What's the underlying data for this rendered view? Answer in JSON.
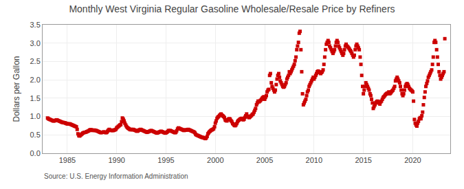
{
  "chart_data": {
    "type": "scatter",
    "title": "Monthly West Virginia Regular Gasoline Wholesale/Resale Price by Refiners",
    "ylabel": "Dollars per Gallon",
    "annotations": [
      "Source: U.S. Energy Information Administration"
    ],
    "color": "#cc0000",
    "marker": "square",
    "grid": true,
    "xlim": [
      1982.5,
      2023.8
    ],
    "xticks": [
      1985,
      1990,
      1995,
      2000,
      2005,
      2010,
      2015,
      2020
    ],
    "ylim": [
      0.0,
      3.5
    ],
    "yticks": [
      {
        "value": 0.0,
        "label": "0.0"
      },
      0.5,
      {
        "value": 1.0,
        "label": "1.0"
      },
      1.5,
      {
        "value": 2.0,
        "label": "2.0"
      },
      2.5,
      {
        "value": 3.0,
        "label": "3.0"
      },
      3.5
    ],
    "x": [
      1983.0,
      1983.08,
      1983.17,
      1983.25,
      1983.33,
      1983.42,
      1983.5,
      1983.58,
      1983.67,
      1983.75,
      1983.83,
      1983.92,
      1984.0,
      1984.08,
      1984.17,
      1984.25,
      1984.33,
      1984.42,
      1984.5,
      1984.58,
      1984.67,
      1984.75,
      1984.83,
      1984.92,
      1985.0,
      1985.08,
      1985.17,
      1985.25,
      1985.33,
      1985.42,
      1985.5,
      1985.58,
      1985.67,
      1985.75,
      1985.83,
      1985.92,
      1986.0,
      1986.08,
      1986.17,
      1986.25,
      1986.33,
      1986.42,
      1986.5,
      1986.58,
      1986.67,
      1986.75,
      1986.83,
      1986.92,
      1987.0,
      1987.08,
      1987.17,
      1987.25,
      1987.33,
      1987.42,
      1987.5,
      1987.58,
      1987.67,
      1987.75,
      1987.83,
      1987.92,
      1988.0,
      1988.08,
      1988.17,
      1988.25,
      1988.33,
      1988.42,
      1988.5,
      1988.58,
      1988.67,
      1988.75,
      1988.83,
      1988.92,
      1989.0,
      1989.08,
      1989.17,
      1989.25,
      1989.33,
      1989.42,
      1989.5,
      1989.58,
      1989.67,
      1989.75,
      1989.83,
      1989.92,
      1990.0,
      1990.08,
      1990.17,
      1990.25,
      1990.33,
      1990.42,
      1990.5,
      1990.58,
      1990.67,
      1990.75,
      1990.83,
      1990.92,
      1991.0,
      1991.08,
      1991.17,
      1991.25,
      1991.33,
      1991.42,
      1991.5,
      1991.58,
      1991.67,
      1991.75,
      1991.83,
      1991.92,
      1992.0,
      1992.08,
      1992.17,
      1992.25,
      1992.33,
      1992.42,
      1992.5,
      1992.58,
      1992.67,
      1992.75,
      1992.83,
      1992.92,
      1993.0,
      1993.08,
      1993.17,
      1993.25,
      1993.33,
      1993.42,
      1993.5,
      1993.58,
      1993.67,
      1993.75,
      1993.83,
      1993.92,
      1994.0,
      1994.08,
      1994.17,
      1994.25,
      1994.33,
      1994.42,
      1994.5,
      1994.58,
      1994.67,
      1994.75,
      1994.83,
      1994.92,
      1995.0,
      1995.08,
      1995.17,
      1995.25,
      1995.33,
      1995.42,
      1995.5,
      1995.58,
      1995.67,
      1995.75,
      1995.83,
      1995.92,
      1996.0,
      1996.08,
      1996.17,
      1996.25,
      1996.33,
      1996.42,
      1996.5,
      1996.58,
      1996.67,
      1996.75,
      1996.83,
      1996.92,
      1997.0,
      1997.08,
      1997.17,
      1997.25,
      1997.33,
      1997.42,
      1997.5,
      1997.58,
      1997.67,
      1997.75,
      1997.83,
      1997.92,
      1998.0,
      1998.08,
      1998.17,
      1998.25,
      1998.33,
      1998.42,
      1998.5,
      1998.58,
      1998.67,
      1998.75,
      1998.83,
      1998.92,
      1999.0,
      1999.08,
      1999.17,
      1999.25,
      1999.33,
      1999.42,
      1999.5,
      1999.58,
      1999.67,
      1999.75,
      1999.83,
      1999.92,
      2000.0,
      2000.08,
      2000.17,
      2000.25,
      2000.33,
      2000.42,
      2000.5,
      2000.58,
      2000.67,
      2000.75,
      2000.83,
      2000.92,
      2001.0,
      2001.08,
      2001.17,
      2001.25,
      2001.33,
      2001.42,
      2001.5,
      2001.58,
      2001.67,
      2001.75,
      2001.83,
      2001.92,
      2002.0,
      2002.08,
      2002.17,
      2002.25,
      2002.33,
      2002.42,
      2002.5,
      2002.58,
      2002.67,
      2002.75,
      2002.83,
      2002.92,
      2003.0,
      2003.08,
      2003.17,
      2003.25,
      2003.33,
      2003.42,
      2003.5,
      2003.58,
      2003.67,
      2003.75,
      2003.83,
      2003.92,
      2004.0,
      2004.08,
      2004.17,
      2004.25,
      2004.33,
      2004.42,
      2004.5,
      2004.58,
      2004.67,
      2004.75,
      2004.83,
      2004.92,
      2005.0,
      2005.08,
      2005.17,
      2005.25,
      2005.33,
      2005.42,
      2005.5,
      2005.58,
      2005.67,
      2005.75,
      2005.83,
      2005.92,
      2006.0,
      2006.08,
      2006.17,
      2006.25,
      2006.33,
      2006.42,
      2006.5,
      2006.58,
      2006.67,
      2006.75,
      2006.83,
      2006.92,
      2007.0,
      2007.08,
      2007.17,
      2007.25,
      2007.33,
      2007.42,
      2007.5,
      2007.58,
      2007.67,
      2007.75,
      2007.83,
      2007.92,
      2008.0,
      2008.08,
      2008.17,
      2008.25,
      2008.33,
      2008.42,
      2008.5,
      2008.58,
      2008.67,
      2008.75,
      2008.83,
      2008.92,
      2009.0,
      2009.08,
      2009.17,
      2009.25,
      2009.33,
      2009.42,
      2009.5,
      2009.58,
      2009.67,
      2009.75,
      2009.83,
      2009.92,
      2010.0,
      2010.08,
      2010.17,
      2010.25,
      2010.33,
      2010.42,
      2010.5,
      2010.58,
      2010.67,
      2010.75,
      2010.83,
      2010.92,
      2011.0,
      2011.08,
      2011.17,
      2011.25,
      2011.33,
      2011.42,
      2011.5,
      2011.58,
      2011.67,
      2011.75,
      2011.83,
      2011.92,
      2012.0,
      2012.08,
      2012.17,
      2012.25,
      2012.33,
      2012.42,
      2012.5,
      2012.58,
      2012.67,
      2012.75,
      2012.83,
      2012.92,
      2013.0,
      2013.08,
      2013.17,
      2013.25,
      2013.33,
      2013.42,
      2013.5,
      2013.58,
      2013.67,
      2013.75,
      2013.83,
      2013.92,
      2014.0,
      2014.08,
      2014.17,
      2014.25,
      2014.33,
      2014.42,
      2014.5,
      2014.58,
      2014.67,
      2014.75,
      2014.83,
      2014.92,
      2015.0,
      2015.08,
      2015.17,
      2015.25,
      2015.33,
      2015.42,
      2015.5,
      2015.58,
      2015.67,
      2015.75,
      2015.83,
      2015.92,
      2016.0,
      2016.08,
      2016.17,
      2016.25,
      2016.33,
      2016.42,
      2016.5,
      2016.58,
      2016.67,
      2016.75,
      2016.83,
      2016.92,
      2017.0,
      2017.08,
      2017.17,
      2017.25,
      2017.33,
      2017.42,
      2017.5,
      2017.58,
      2017.67,
      2017.75,
      2017.83,
      2017.92,
      2018.0,
      2018.08,
      2018.17,
      2018.25,
      2018.33,
      2018.42,
      2018.5,
      2018.58,
      2018.67,
      2018.75,
      2018.83,
      2018.92,
      2019.0,
      2019.08,
      2019.17,
      2019.25,
      2019.33,
      2019.42,
      2019.5,
      2019.58,
      2019.67,
      2019.75,
      2019.83,
      2019.92,
      2020.0,
      2020.08,
      2020.17,
      2020.25,
      2020.33,
      2020.42,
      2020.5,
      2020.58,
      2020.67,
      2020.75,
      2020.83,
      2020.92,
      2021.0,
      2021.08,
      2021.17,
      2021.25,
      2021.33,
      2021.42,
      2021.5,
      2021.58,
      2021.67,
      2021.75,
      2021.83,
      2021.92,
      2022.0,
      2022.08,
      2022.17,
      2022.25,
      2022.33,
      2022.42,
      2022.5,
      2022.58,
      2022.67,
      2022.75,
      2022.83,
      2022.92,
      2023.0,
      2023.08,
      2023.17,
      2023.25
    ],
    "values": [
      0.96,
      0.94,
      0.93,
      0.92,
      0.91,
      0.9,
      0.89,
      0.88,
      0.88,
      0.89,
      0.9,
      0.91,
      0.9,
      0.89,
      0.88,
      0.87,
      0.86,
      0.85,
      0.84,
      0.84,
      0.83,
      0.83,
      0.82,
      0.81,
      0.8,
      0.8,
      0.8,
      0.8,
      0.79,
      0.78,
      0.77,
      0.76,
      0.75,
      0.74,
      0.73,
      0.72,
      0.65,
      0.53,
      0.48,
      0.47,
      0.49,
      0.51,
      0.53,
      0.55,
      0.56,
      0.57,
      0.57,
      0.58,
      0.59,
      0.6,
      0.61,
      0.63,
      0.64,
      0.64,
      0.63,
      0.62,
      0.63,
      0.63,
      0.62,
      0.62,
      0.61,
      0.6,
      0.59,
      0.58,
      0.57,
      0.56,
      0.57,
      0.57,
      0.58,
      0.58,
      0.57,
      0.56,
      0.57,
      0.6,
      0.63,
      0.65,
      0.63,
      0.62,
      0.63,
      0.62,
      0.62,
      0.63,
      0.64,
      0.65,
      0.69,
      0.71,
      0.73,
      0.75,
      0.77,
      0.78,
      0.86,
      0.96,
      0.93,
      0.88,
      0.82,
      0.77,
      0.73,
      0.7,
      0.68,
      0.67,
      0.65,
      0.64,
      0.65,
      0.64,
      0.65,
      0.64,
      0.63,
      0.62,
      0.61,
      0.6,
      0.61,
      0.63,
      0.64,
      0.65,
      0.64,
      0.63,
      0.62,
      0.61,
      0.6,
      0.59,
      0.58,
      0.57,
      0.58,
      0.59,
      0.6,
      0.61,
      0.62,
      0.61,
      0.6,
      0.59,
      0.58,
      0.57,
      0.56,
      0.55,
      0.56,
      0.57,
      0.58,
      0.59,
      0.6,
      0.59,
      0.58,
      0.57,
      0.56,
      0.55,
      0.56,
      0.57,
      0.59,
      0.62,
      0.61,
      0.62,
      0.61,
      0.6,
      0.59,
      0.58,
      0.57,
      0.56,
      0.57,
      0.61,
      0.66,
      0.69,
      0.68,
      0.67,
      0.66,
      0.65,
      0.64,
      0.63,
      0.62,
      0.63,
      0.64,
      0.63,
      0.64,
      0.65,
      0.64,
      0.63,
      0.62,
      0.61,
      0.6,
      0.59,
      0.58,
      0.56,
      0.52,
      0.5,
      0.49,
      0.48,
      0.47,
      0.46,
      0.45,
      0.44,
      0.43,
      0.43,
      0.42,
      0.41,
      0.4,
      0.42,
      0.46,
      0.53,
      0.56,
      0.59,
      0.61,
      0.63,
      0.64,
      0.65,
      0.67,
      0.72,
      0.82,
      0.88,
      0.95,
      0.98,
      1.0,
      1.03,
      1.05,
      1.07,
      1.04,
      1.02,
      1.0,
      0.97,
      0.91,
      0.89,
      0.88,
      0.91,
      0.93,
      0.94,
      0.93,
      0.89,
      0.86,
      0.81,
      0.79,
      0.76,
      0.75,
      0.77,
      0.81,
      0.86,
      0.89,
      0.91,
      0.93,
      0.94,
      0.95,
      0.93,
      0.91,
      0.93,
      0.98,
      1.02,
      1.07,
      1.01,
      0.99,
      0.97,
      0.99,
      1.01,
      1.03,
      1.06,
      1.07,
      1.12,
      1.17,
      1.22,
      1.32,
      1.37,
      1.42,
      1.4,
      1.42,
      1.44,
      1.47,
      1.5,
      1.52,
      1.54,
      1.47,
      1.52,
      1.57,
      1.67,
      1.72,
      1.74,
      2.12,
      2.17,
      1.92,
      1.82,
      1.77,
      1.72,
      1.67,
      1.72,
      1.87,
      2.02,
      2.12,
      2.17,
      2.07,
      1.97,
      1.92,
      1.87,
      1.82,
      1.8,
      1.82,
      1.87,
      1.92,
      2.02,
      2.07,
      2.12,
      2.22,
      2.17,
      2.22,
      2.27,
      2.32,
      2.37,
      2.42,
      2.52,
      2.62,
      2.82,
      2.92,
      3.02,
      3.27,
      3.32,
      2.82,
      2.22,
      1.62,
      1.32,
      1.37,
      1.42,
      1.47,
      1.57,
      1.67,
      1.72,
      1.82,
      1.87,
      1.92,
      1.97,
      2.02,
      2.07,
      2.02,
      2.07,
      2.12,
      2.17,
      2.22,
      2.24,
      2.22,
      2.2,
      2.17,
      2.2,
      2.22,
      2.27,
      2.42,
      2.62,
      2.82,
      2.97,
      3.02,
      3.07,
      3.02,
      2.92,
      2.87,
      2.82,
      2.77,
      2.72,
      2.77,
      2.82,
      2.92,
      3.02,
      3.07,
      3.02,
      2.92,
      2.87,
      2.82,
      2.77,
      2.72,
      2.67,
      2.72,
      2.82,
      2.92,
      2.97,
      2.92,
      2.9,
      2.87,
      2.84,
      2.8,
      2.77,
      2.72,
      2.67,
      2.62,
      2.67,
      2.82,
      2.92,
      2.97,
      2.92,
      2.87,
      2.82,
      2.62,
      2.42,
      2.12,
      1.82,
      1.62,
      1.72,
      1.82,
      1.92,
      1.87,
      1.82,
      1.77,
      1.72,
      1.62,
      1.57,
      1.47,
      1.37,
      1.22,
      1.27,
      1.32,
      1.37,
      1.4,
      1.42,
      1.4,
      1.37,
      1.34,
      1.4,
      1.42,
      1.47,
      1.52,
      1.54,
      1.57,
      1.6,
      1.62,
      1.64,
      1.62,
      1.67,
      1.62,
      1.64,
      1.67,
      1.7,
      1.72,
      1.77,
      1.82,
      1.97,
      2.02,
      2.07,
      2.02,
      1.97,
      1.92,
      1.82,
      1.72,
      1.62,
      1.57,
      1.62,
      1.72,
      1.82,
      1.87,
      1.9,
      1.87,
      1.82,
      1.77,
      1.74,
      1.72,
      1.7,
      1.67,
      1.42,
      0.92,
      0.82,
      0.77,
      0.74,
      0.82,
      0.87,
      0.94,
      0.97,
      0.94,
      1.02,
      1.12,
      1.32,
      1.52,
      1.67,
      1.82,
      1.9,
      1.97,
      2.07,
      2.12,
      2.17,
      2.22,
      2.27,
      2.42,
      2.62,
      3.02,
      3.07,
      3.02,
      2.82,
      2.62,
      2.42,
      2.22,
      2.12,
      2.02,
      2.07,
      2.12,
      2.17,
      2.22,
      3.12
    ]
  }
}
